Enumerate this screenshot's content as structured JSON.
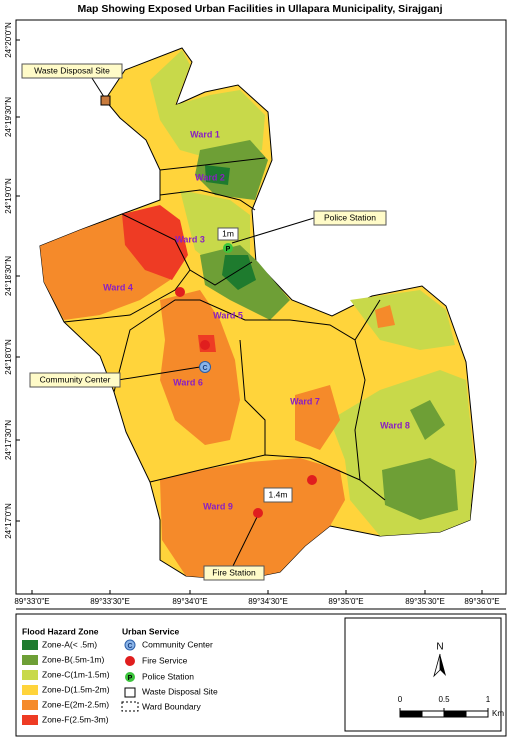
{
  "title": "Map Showing Exposed Urban Facilities in Ullapara Municipality, Sirajganj",
  "map": {
    "latitude_labels": [
      "24°20'0\"N",
      "24°19'30\"N",
      "24°19'0\"N",
      "24°18'30\"N",
      "24°18'0\"N",
      "24°17'30\"N",
      "24°17'0\"N"
    ],
    "longitude_labels": [
      "89°33'0\"E",
      "89°33'30\"E",
      "89°34'0\"E",
      "89°34'30\"E",
      "89°35'0\"E",
      "89°35'30\"E",
      "89°36'0\"E"
    ],
    "ward_labels": [
      "Ward  1",
      "Ward  2",
      "Ward  3",
      "Ward  4",
      "Ward  5",
      "Ward  6",
      "Ward  7",
      "Ward  8",
      "Ward  9"
    ],
    "callouts": {
      "waste_disposal_site": "Waste Disposal Site",
      "police_station": "Police Station",
      "community_center": "Community Center",
      "fire_station": "Fire Station"
    },
    "distance_labels": [
      "1m",
      "1.4m"
    ],
    "symbols": {
      "community_center": "C",
      "police_station": "P"
    }
  },
  "legend": {
    "flood_hazard_zone": {
      "title": "Flood Hazard Zone",
      "items": [
        "Zone-A(< .5m)",
        "Zone-B(.5m-1m)",
        "Zone-C(1m-1.5m)",
        "Zone-D(1.5m-2m)",
        "Zone-E(2m-2.5m)",
        "Zone-F(2.5m-3m)"
      ]
    },
    "urban_service": {
      "title": "Urban Service",
      "items": [
        "Community Center",
        "Fire Service",
        "Police Station",
        "Waste Disposal Site",
        "Ward Boundary"
      ]
    }
  },
  "scale_bar": {
    "ticks": [
      0,
      0.5,
      1
    ],
    "unit": "Km"
  },
  "north_arrow": "N"
}
